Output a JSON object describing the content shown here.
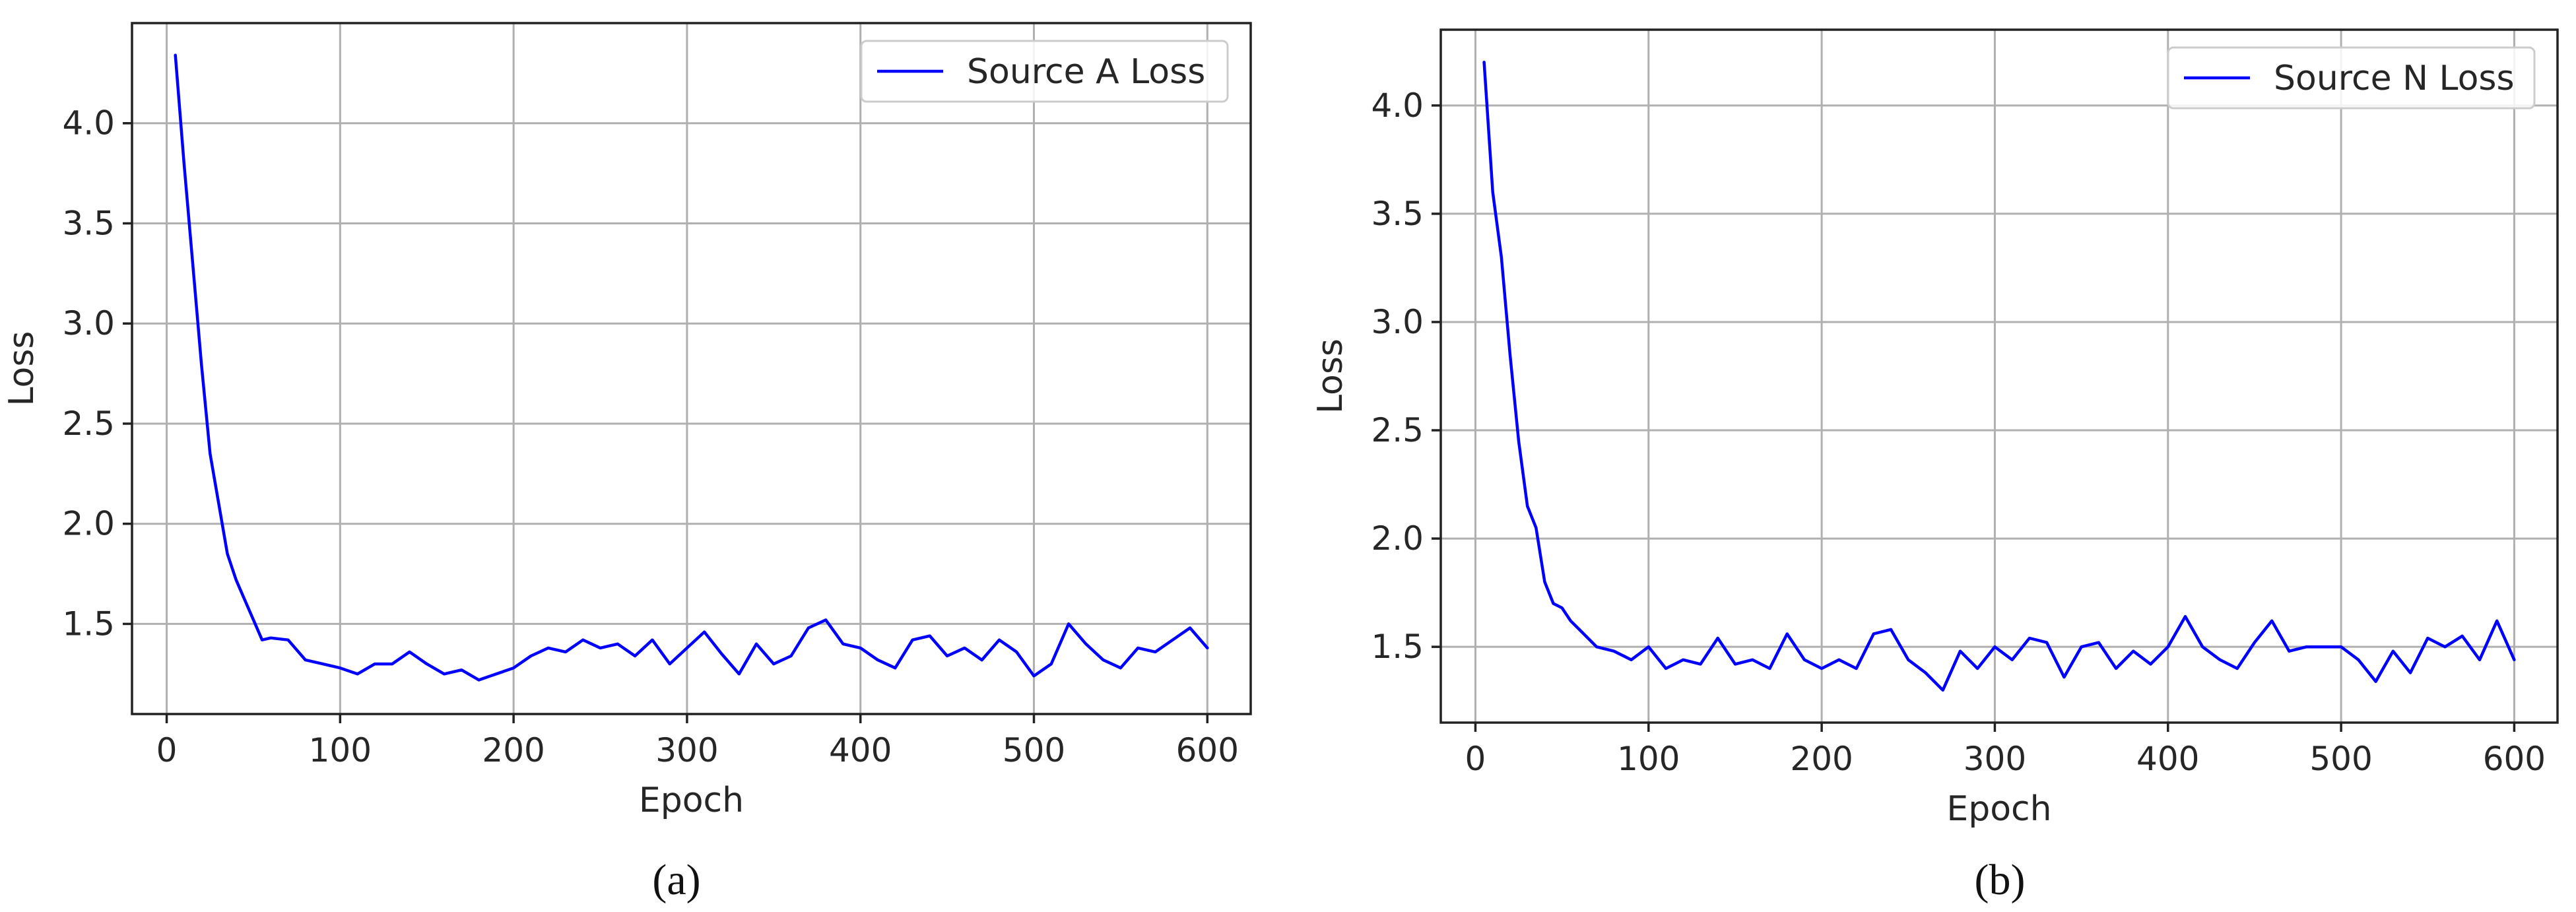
{
  "chart_data": [
    {
      "type": "line",
      "caption": "(a)",
      "xlabel": "Epoch",
      "ylabel": "Loss",
      "xlim": [
        -20,
        625
      ],
      "ylim": [
        1.05,
        4.5
      ],
      "xticks": [
        0,
        100,
        200,
        300,
        400,
        500,
        600
      ],
      "yticks": [
        1.5,
        2.0,
        2.5,
        3.0,
        3.5,
        4.0
      ],
      "xtick_labels": [
        "0",
        "100",
        "200",
        "300",
        "400",
        "500",
        "600"
      ],
      "ytick_labels": [
        "1.5",
        "2.0",
        "2.5",
        "3.0",
        "3.5",
        "4.0"
      ],
      "grid": true,
      "legend_position": "top-right",
      "series": [
        {
          "name": "Source A Loss",
          "color": "#0000ff",
          "x": [
            5,
            10,
            15,
            20,
            25,
            30,
            35,
            40,
            45,
            50,
            55,
            60,
            70,
            80,
            90,
            100,
            110,
            120,
            130,
            140,
            150,
            160,
            170,
            180,
            190,
            200,
            210,
            220,
            230,
            240,
            250,
            260,
            270,
            280,
            290,
            300,
            310,
            320,
            330,
            340,
            350,
            360,
            370,
            380,
            390,
            400,
            410,
            420,
            430,
            440,
            450,
            460,
            470,
            480,
            490,
            500,
            510,
            520,
            530,
            540,
            550,
            560,
            570,
            580,
            590,
            600
          ],
          "y": [
            4.34,
            3.8,
            3.3,
            2.8,
            2.35,
            2.1,
            1.85,
            1.72,
            1.62,
            1.52,
            1.42,
            1.43,
            1.42,
            1.32,
            1.3,
            1.28,
            1.25,
            1.3,
            1.3,
            1.36,
            1.3,
            1.25,
            1.27,
            1.22,
            1.25,
            1.28,
            1.34,
            1.38,
            1.36,
            1.42,
            1.38,
            1.4,
            1.34,
            1.42,
            1.3,
            1.38,
            1.46,
            1.35,
            1.25,
            1.4,
            1.3,
            1.34,
            1.48,
            1.52,
            1.4,
            1.38,
            1.32,
            1.28,
            1.42,
            1.44,
            1.34,
            1.38,
            1.32,
            1.42,
            1.36,
            1.24,
            1.3,
            1.5,
            1.4,
            1.32,
            1.28,
            1.38,
            1.36,
            1.42,
            1.48,
            1.38
          ]
        }
      ]
    },
    {
      "type": "line",
      "caption": "(b)",
      "xlabel": "Epoch",
      "ylabel": "Loss",
      "xlim": [
        -20,
        625
      ],
      "ylim": [
        1.15,
        4.35
      ],
      "xticks": [
        0,
        100,
        200,
        300,
        400,
        500,
        600
      ],
      "yticks": [
        1.5,
        2.0,
        2.5,
        3.0,
        3.5,
        4.0
      ],
      "xtick_labels": [
        "0",
        "100",
        "200",
        "300",
        "400",
        "500",
        "600"
      ],
      "ytick_labels": [
        "1.5",
        "2.0",
        "2.5",
        "3.0",
        "3.5",
        "4.0"
      ],
      "grid": true,
      "legend_position": "top-right",
      "series": [
        {
          "name": "Source N Loss",
          "color": "#0000ff",
          "x": [
            5,
            10,
            15,
            20,
            25,
            30,
            35,
            40,
            45,
            50,
            55,
            60,
            70,
            80,
            90,
            100,
            110,
            120,
            130,
            140,
            150,
            160,
            170,
            180,
            190,
            200,
            210,
            220,
            230,
            240,
            250,
            260,
            270,
            280,
            290,
            300,
            310,
            320,
            330,
            340,
            350,
            360,
            370,
            380,
            390,
            400,
            410,
            420,
            430,
            440,
            450,
            460,
            470,
            480,
            490,
            500,
            510,
            520,
            530,
            540,
            550,
            560,
            570,
            580,
            590,
            600
          ],
          "y": [
            4.2,
            3.6,
            3.3,
            2.85,
            2.45,
            2.15,
            2.05,
            1.8,
            1.7,
            1.68,
            1.62,
            1.58,
            1.5,
            1.48,
            1.44,
            1.5,
            1.4,
            1.44,
            1.42,
            1.54,
            1.42,
            1.44,
            1.4,
            1.56,
            1.44,
            1.4,
            1.44,
            1.4,
            1.56,
            1.58,
            1.44,
            1.38,
            1.3,
            1.48,
            1.4,
            1.5,
            1.44,
            1.54,
            1.52,
            1.36,
            1.5,
            1.52,
            1.4,
            1.48,
            1.42,
            1.5,
            1.64,
            1.5,
            1.44,
            1.4,
            1.52,
            1.62,
            1.48,
            1.5,
            1.5,
            1.5,
            1.44,
            1.34,
            1.48,
            1.38,
            1.54,
            1.5,
            1.55,
            1.44,
            1.62,
            1.44
          ]
        }
      ]
    }
  ]
}
